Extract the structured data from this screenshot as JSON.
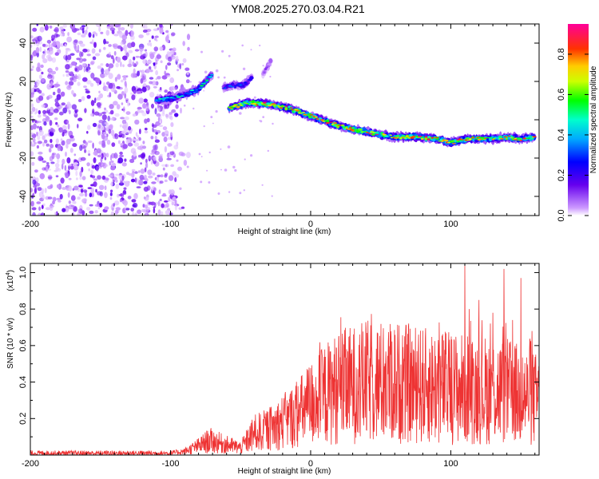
{
  "title": "YM08.2025.270.03.04.R21",
  "colors": {
    "snr_line": "#ee3333",
    "frame": "#000000",
    "background": "#ffffff"
  },
  "chart_data": [
    {
      "type": "heatmap",
      "name": "spectrogram",
      "xlabel": "Height of straight line (km)",
      "ylabel": "Frequency (Hz)",
      "xlim": [
        -200,
        163
      ],
      "ylim": [
        -50,
        50
      ],
      "x_ticks": [
        -200,
        -100,
        0,
        100
      ],
      "x_tick_labels": [
        "-200",
        "-100",
        "0",
        "100"
      ],
      "y_ticks": [
        -40,
        -20,
        0,
        20,
        40
      ],
      "y_tick_labels": [
        "-40",
        "-20",
        "0",
        "20",
        "40"
      ],
      "colorbar": {
        "label": "Normalized spectral amplitude",
        "range": [
          0,
          0.95
        ],
        "ticks": [
          0.0,
          0.2,
          0.4,
          0.6,
          0.8
        ],
        "tick_labels": [
          "0.0",
          "0.2",
          "0.4",
          "0.6",
          "0.8"
        ],
        "colormap": "rainbow (purple-blue-cyan-green-yellow-red-magenta)"
      },
      "noise_region": {
        "x_range": [
          -200,
          -95
        ],
        "y_range": [
          -50,
          50
        ],
        "level": 0.05
      },
      "ridges": [
        {
          "x": [
            -110,
            -100,
            -90,
            -80,
            -75,
            -70
          ],
          "y": [
            10,
            11,
            13,
            16,
            20,
            24
          ],
          "peak": 0.55
        },
        {
          "x": [
            -62,
            -55,
            -48,
            -42
          ],
          "y": [
            17,
            18,
            18,
            22
          ],
          "peak": 0.35
        },
        {
          "x": [
            -34,
            -28
          ],
          "y": [
            24,
            31
          ],
          "peak": 0.15
        },
        {
          "x": [
            -58,
            -45,
            -30,
            -15,
            0,
            15,
            30,
            45,
            60,
            75,
            90,
            100,
            112,
            125,
            140,
            150,
            160
          ],
          "y": [
            6,
            9,
            8,
            6,
            2,
            -2,
            -5,
            -7,
            -9,
            -9,
            -10,
            -12,
            -10,
            -10,
            -9,
            -10,
            -9
          ],
          "peak": 0.9
        }
      ]
    },
    {
      "type": "line",
      "name": "snr",
      "xlabel": "Height of straight line (km)",
      "ylabel": "SNR (10 * v/v)",
      "y_multiplier": "(x10",
      "y_multiplier_exp": "4",
      "y_multiplier_close": ")",
      "xlim": [
        -200,
        163
      ],
      "ylim": [
        0,
        1.05
      ],
      "x_ticks": [
        -200,
        -100,
        0,
        100
      ],
      "x_tick_labels": [
        "-200",
        "-100",
        "0",
        "100"
      ],
      "y_ticks": [
        0.2,
        0.4,
        0.6,
        0.8,
        1.0
      ],
      "y_tick_labels": [
        "0.2",
        "0.4",
        "0.6",
        "0.8",
        "1.0"
      ],
      "envelope": [
        {
          "x": -200,
          "y": 0.01
        },
        {
          "x": -100,
          "y": 0.01
        },
        {
          "x": -90,
          "y": 0.02
        },
        {
          "x": -80,
          "y": 0.05
        },
        {
          "x": -72,
          "y": 0.08
        },
        {
          "x": -62,
          "y": 0.06
        },
        {
          "x": -50,
          "y": 0.04
        },
        {
          "x": -40,
          "y": 0.12
        },
        {
          "x": -30,
          "y": 0.14
        },
        {
          "x": -20,
          "y": 0.18
        },
        {
          "x": -10,
          "y": 0.22
        },
        {
          "x": 0,
          "y": 0.28
        },
        {
          "x": 10,
          "y": 0.33
        },
        {
          "x": 20,
          "y": 0.37
        },
        {
          "x": 40,
          "y": 0.4
        },
        {
          "x": 60,
          "y": 0.4
        },
        {
          "x": 80,
          "y": 0.38
        },
        {
          "x": 100,
          "y": 0.37
        },
        {
          "x": 120,
          "y": 0.36
        },
        {
          "x": 140,
          "y": 0.35
        },
        {
          "x": 155,
          "y": 0.32
        },
        {
          "x": 163,
          "y": 0.3
        }
      ],
      "spikes": [
        {
          "x": 110,
          "y": 1.05
        },
        {
          "x": 120,
          "y": 0.85
        },
        {
          "x": 138,
          "y": 1.02
        },
        {
          "x": 150,
          "y": 0.97
        },
        {
          "x": 130,
          "y": 0.78
        },
        {
          "x": 77,
          "y": 0.66
        },
        {
          "x": 113,
          "y": 0.8
        },
        {
          "x": 144,
          "y": 0.74
        },
        {
          "x": 91,
          "y": 0.63
        },
        {
          "x": 158,
          "y": 0.68
        }
      ]
    }
  ]
}
